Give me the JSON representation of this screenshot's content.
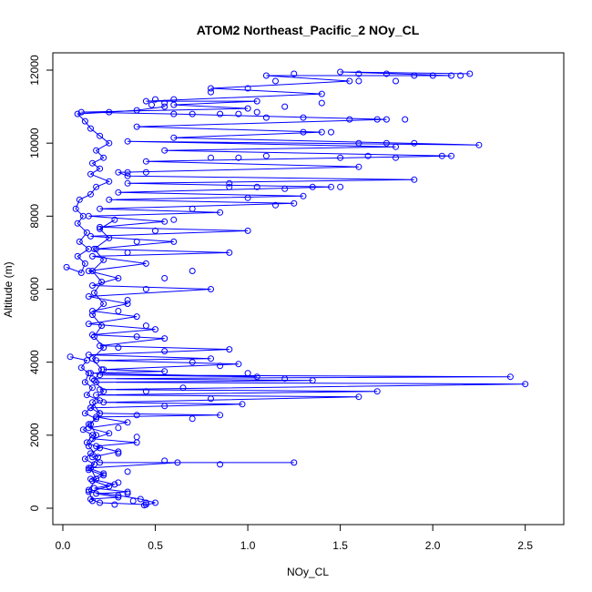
{
  "chart_data": {
    "type": "scatter",
    "title": "ATOM2 Northeast_Pacific_2 NOy_CL",
    "xlabel": "NOy_CL",
    "ylabel": "Altitude (m)",
    "xlim": [
      0.0,
      2.6
    ],
    "ylim": [
      0,
      12000
    ],
    "xticks": [
      0.0,
      0.5,
      1.0,
      1.5,
      2.0,
      2.5
    ],
    "xtick_labels": [
      "0.0",
      "0.5",
      "1.0",
      "1.5",
      "2.0",
      "2.5"
    ],
    "yticks": [
      0,
      2000,
      4000,
      6000,
      8000,
      10000,
      12000
    ],
    "ytick_labels": [
      "0",
      "2000",
      "4000",
      "6000",
      "8000",
      "10000",
      "12000"
    ],
    "grid": false,
    "legend": "none",
    "series_color": "#0000ff",
    "series": [
      {
        "style": "line+points",
        "points": [
          [
            0.45,
            100
          ],
          [
            0.2,
            150
          ],
          [
            0.15,
            250
          ],
          [
            0.3,
            300
          ],
          [
            0.18,
            400
          ],
          [
            0.35,
            450
          ],
          [
            0.17,
            550
          ],
          [
            0.28,
            650
          ],
          [
            0.15,
            800
          ],
          [
            0.22,
            950
          ],
          [
            0.14,
            1100
          ],
          [
            0.62,
            1250
          ],
          [
            1.25,
            1250
          ],
          [
            0.2,
            1250
          ],
          [
            0.16,
            1400
          ],
          [
            0.3,
            1550
          ],
          [
            0.18,
            1700
          ],
          [
            0.4,
            1800
          ],
          [
            0.16,
            1900
          ],
          [
            0.25,
            2050
          ],
          [
            0.14,
            2200
          ],
          [
            0.35,
            2350
          ],
          [
            0.18,
            2500
          ],
          [
            0.85,
            2550
          ],
          [
            0.2,
            2600
          ],
          [
            0.15,
            2750
          ],
          [
            0.97,
            2850
          ],
          [
            0.22,
            2900
          ],
          [
            1.6,
            3050
          ],
          [
            0.18,
            3100
          ],
          [
            1.7,
            3200
          ],
          [
            0.2,
            3250
          ],
          [
            2.5,
            3400
          ],
          [
            0.18,
            3450
          ],
          [
            1.35,
            3500
          ],
          [
            0.16,
            3550
          ],
          [
            2.42,
            3600
          ],
          [
            0.2,
            3650
          ],
          [
            1.05,
            3600
          ],
          [
            0.15,
            3700
          ],
          [
            0.55,
            3750
          ],
          [
            0.22,
            3800
          ],
          [
            0.95,
            3950
          ],
          [
            0.18,
            4050
          ],
          [
            0.8,
            4100
          ],
          [
            0.14,
            4200
          ],
          [
            0.9,
            4350
          ],
          [
            0.2,
            4450
          ],
          [
            0.55,
            4650
          ],
          [
            0.16,
            4750
          ],
          [
            0.5,
            4900
          ],
          [
            0.14,
            5050
          ],
          [
            0.4,
            5250
          ],
          [
            0.16,
            5400
          ],
          [
            0.35,
            5600
          ],
          [
            0.14,
            5800
          ],
          [
            0.8,
            6000
          ],
          [
            0.16,
            6100
          ],
          [
            0.3,
            6300
          ],
          [
            0.14,
            6500
          ],
          [
            0.45,
            6700
          ],
          [
            0.16,
            6900
          ],
          [
            0.9,
            7000
          ],
          [
            0.18,
            7100
          ],
          [
            0.6,
            7300
          ],
          [
            0.15,
            7450
          ],
          [
            1.0,
            7600
          ],
          [
            0.2,
            7700
          ],
          [
            0.55,
            7850
          ],
          [
            0.14,
            8000
          ],
          [
            0.85,
            8100
          ],
          [
            0.2,
            8200
          ],
          [
            1.25,
            8350
          ],
          [
            0.25,
            8450
          ],
          [
            1.3,
            8550
          ],
          [
            0.3,
            8650
          ],
          [
            1.45,
            8800
          ],
          [
            0.35,
            8900
          ],
          [
            1.9,
            9000
          ],
          [
            0.35,
            9100
          ],
          [
            0.3,
            9200
          ],
          [
            1.6,
            9350
          ],
          [
            0.45,
            9500
          ],
          [
            2.1,
            9650
          ],
          [
            0.55,
            9800
          ],
          [
            1.8,
            9900
          ],
          [
            0.35,
            10050
          ],
          [
            2.25,
            9950
          ],
          [
            0.6,
            10150
          ],
          [
            1.4,
            10300
          ],
          [
            0.4,
            10450
          ],
          [
            1.75,
            10650
          ],
          [
            0.6,
            10800
          ],
          [
            0.1,
            10850
          ],
          [
            1.0,
            10950
          ],
          [
            0.6,
            11050
          ],
          [
            1.05,
            11150
          ],
          [
            0.45,
            11150
          ],
          [
            1.4,
            11350
          ],
          [
            0.8,
            11500
          ],
          [
            1.55,
            11700
          ],
          [
            1.1,
            11850
          ],
          [
            2.1,
            11850
          ],
          [
            1.5,
            11950
          ],
          [
            2.2,
            11900
          ]
        ]
      },
      {
        "style": "line+points",
        "points": [
          [
            0.04,
            4150
          ],
          [
            0.13,
            4050
          ],
          [
            0.1,
            3850
          ],
          [
            0.14,
            3700
          ],
          [
            0.12,
            3450
          ],
          [
            0.16,
            3300
          ],
          [
            0.13,
            3100
          ],
          [
            0.2,
            2950
          ],
          [
            0.15,
            2750
          ],
          [
            0.12,
            2600
          ],
          [
            0.18,
            2450
          ],
          [
            0.14,
            2300
          ],
          [
            0.11,
            2150
          ],
          [
            0.16,
            2000
          ],
          [
            0.13,
            1800
          ],
          [
            0.2,
            1650
          ],
          [
            0.15,
            1500
          ],
          [
            0.12,
            1350
          ],
          [
            0.17,
            1200
          ],
          [
            0.14,
            1050
          ],
          [
            0.22,
            900
          ],
          [
            0.16,
            750
          ],
          [
            0.25,
            600
          ],
          [
            0.14,
            450
          ],
          [
            0.3,
            350
          ],
          [
            0.42,
            250
          ],
          [
            0.5,
            150
          ],
          [
            0.44,
            80
          ]
        ]
      },
      {
        "style": "line+points",
        "points": [
          [
            0.02,
            6600
          ],
          [
            0.1,
            6450
          ],
          [
            0.12,
            6700
          ],
          [
            0.08,
            6900
          ],
          [
            0.14,
            7100
          ],
          [
            0.09,
            7300
          ],
          [
            0.13,
            7550
          ],
          [
            0.08,
            7800
          ],
          [
            0.11,
            8000
          ],
          [
            0.07,
            8200
          ],
          [
            0.09,
            8450
          ],
          [
            0.15,
            8600
          ],
          [
            0.18,
            8800
          ],
          [
            0.25,
            8950
          ],
          [
            0.15,
            9150
          ],
          [
            0.2,
            9300
          ],
          [
            0.16,
            9450
          ],
          [
            0.22,
            9600
          ],
          [
            0.18,
            9800
          ],
          [
            0.25,
            10000
          ],
          [
            0.2,
            10200
          ],
          [
            0.15,
            10400
          ],
          [
            0.12,
            10600
          ],
          [
            0.08,
            10800
          ],
          [
            0.25,
            10850
          ],
          [
            0.4,
            10900
          ],
          [
            0.55,
            11000
          ]
        ]
      },
      {
        "style": "line+points",
        "points": [
          [
            0.16,
            200
          ],
          [
            0.14,
            500
          ],
          [
            0.18,
            800
          ],
          [
            0.15,
            1100
          ],
          [
            0.19,
            1400
          ],
          [
            0.14,
            1700
          ],
          [
            0.18,
            2000
          ],
          [
            0.15,
            2300
          ],
          [
            0.2,
            2600
          ],
          [
            0.16,
            2900
          ],
          [
            0.22,
            3200
          ],
          [
            0.17,
            3500
          ],
          [
            0.21,
            3800
          ],
          [
            0.16,
            4100
          ],
          [
            0.22,
            4400
          ],
          [
            0.17,
            4700
          ],
          [
            0.21,
            5000
          ],
          [
            0.16,
            5300
          ],
          [
            0.22,
            5600
          ],
          [
            0.17,
            5900
          ],
          [
            0.21,
            6200
          ],
          [
            0.16,
            6500
          ],
          [
            0.22,
            6800
          ],
          [
            0.17,
            7100
          ],
          [
            0.25,
            7400
          ],
          [
            0.2,
            7650
          ],
          [
            0.28,
            7900
          ]
        ]
      },
      {
        "style": "points",
        "points": [
          [
            0.7,
            10800
          ],
          [
            0.85,
            10800
          ],
          [
            1.05,
            10850
          ],
          [
            0.95,
            10800
          ],
          [
            0.55,
            11100
          ],
          [
            0.5,
            11200
          ],
          [
            0.48,
            11050
          ],
          [
            1.1,
            10700
          ],
          [
            1.3,
            10700
          ],
          [
            1.55,
            10650
          ],
          [
            1.7,
            10650
          ],
          [
            1.85,
            10650
          ],
          [
            1.6,
            10000
          ],
          [
            1.75,
            10000
          ],
          [
            1.9,
            10000
          ],
          [
            1.5,
            9600
          ],
          [
            1.65,
            9650
          ],
          [
            1.8,
            9600
          ],
          [
            2.05,
            9650
          ],
          [
            0.8,
            9600
          ],
          [
            0.95,
            9600
          ],
          [
            1.1,
            9650
          ],
          [
            0.9,
            8800
          ],
          [
            1.05,
            8800
          ],
          [
            1.2,
            8750
          ],
          [
            1.35,
            8800
          ],
          [
            1.5,
            8800
          ],
          [
            0.45,
            9200
          ],
          [
            0.35,
            9200
          ],
          [
            1.6,
            11900
          ],
          [
            1.75,
            11900
          ],
          [
            1.9,
            11850
          ],
          [
            2.0,
            11850
          ],
          [
            2.15,
            11850
          ],
          [
            1.6,
            11700
          ],
          [
            1.8,
            11700
          ],
          [
            1.3,
            10300
          ],
          [
            1.45,
            10300
          ],
          [
            1.2,
            11000
          ],
          [
            1.4,
            11100
          ],
          [
            0.6,
            11200
          ],
          [
            0.8,
            11400
          ],
          [
            1.0,
            11500
          ],
          [
            1.15,
            11700
          ],
          [
            1.25,
            11900
          ],
          [
            0.9,
            8900
          ],
          [
            1.0,
            8500
          ],
          [
            1.15,
            8300
          ],
          [
            0.7,
            8200
          ],
          [
            0.6,
            7900
          ],
          [
            0.5,
            7600
          ],
          [
            0.4,
            7300
          ],
          [
            0.35,
            7000
          ],
          [
            0.7,
            6500
          ],
          [
            0.55,
            6300
          ],
          [
            0.45,
            6000
          ],
          [
            0.35,
            5700
          ],
          [
            0.3,
            5400
          ],
          [
            0.45,
            5000
          ],
          [
            0.4,
            4700
          ],
          [
            0.3,
            4400
          ],
          [
            0.55,
            4300
          ],
          [
            0.7,
            4000
          ],
          [
            0.85,
            3900
          ],
          [
            1.0,
            3700
          ],
          [
            1.2,
            3550
          ],
          [
            0.65,
            3300
          ],
          [
            0.45,
            3200
          ],
          [
            0.8,
            3000
          ],
          [
            0.55,
            2800
          ],
          [
            0.4,
            2550
          ],
          [
            0.7,
            2450
          ],
          [
            0.3,
            2200
          ],
          [
            0.4,
            1950
          ],
          [
            0.3,
            1500
          ],
          [
            0.55,
            1300
          ],
          [
            0.85,
            1200
          ],
          [
            0.35,
            1000
          ],
          [
            0.3,
            700
          ],
          [
            0.35,
            400
          ],
          [
            0.45,
            150
          ],
          [
            0.28,
            100
          ],
          [
            0.38,
            200
          ]
        ]
      }
    ]
  }
}
